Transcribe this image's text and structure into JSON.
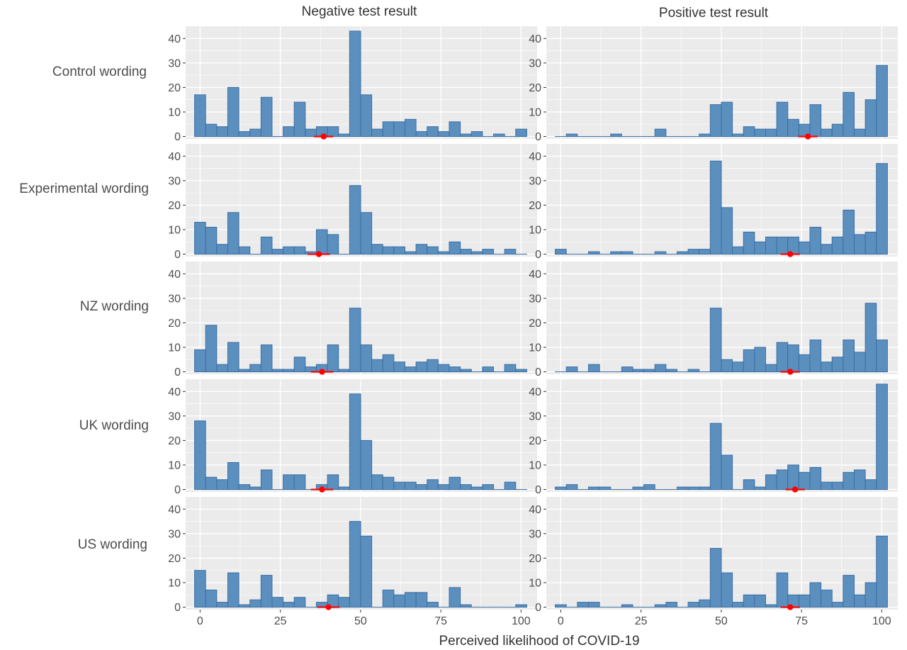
{
  "chart_data": {
    "type": "histogram",
    "xlabel": "Perceived likelihood of COVID-19",
    "ylabel": "",
    "columns": [
      "Negative test result",
      "Positive test result"
    ],
    "rows": [
      "Control wording",
      "Experimental wording",
      "NZ wording",
      "UK wording",
      "US wording"
    ],
    "x_ticks": [
      0,
      25,
      50,
      75,
      100
    ],
    "y_ticks": [
      0,
      10,
      20,
      30,
      40
    ],
    "xlim": [
      -4.5,
      105
    ],
    "ylim": [
      -1,
      45
    ],
    "bin_width": 3.45,
    "bin_centers": [
      0,
      3.45,
      6.9,
      10.35,
      13.8,
      17.25,
      20.7,
      24.15,
      27.6,
      31.05,
      34.5,
      37.95,
      41.4,
      44.85,
      48.3,
      51.75,
      55.2,
      58.65,
      62.1,
      65.55,
      69,
      72.45,
      75.9,
      79.35,
      82.8,
      86.25,
      89.7,
      93.15,
      96.6,
      100.05
    ],
    "bar_fill": "#5b8fbe",
    "bar_stroke": "#3b6fa5",
    "panel_background": "#ebebeb",
    "grid_color": "#ffffff",
    "estimate_color": "#ff0000",
    "panels": [
      {
        "row": "Control wording",
        "column": "Negative test result",
        "counts": [
          17,
          5,
          4,
          20,
          2,
          3,
          16,
          0,
          4,
          14,
          3,
          4,
          4,
          1,
          43,
          17,
          3,
          6,
          6,
          7,
          2,
          4,
          2,
          6,
          1,
          2,
          0,
          1,
          0,
          3
        ],
        "estimate": 38.5,
        "ci": [
          35.5,
          41.5
        ]
      },
      {
        "row": "Control wording",
        "column": "Positive test result",
        "counts": [
          0,
          1,
          0,
          0,
          0,
          1,
          0,
          0,
          0,
          3,
          0,
          0,
          0,
          1,
          13,
          14,
          1,
          4,
          3,
          3,
          14,
          7,
          5,
          13,
          3,
          5,
          18,
          3,
          15,
          29
        ],
        "estimate": 77,
        "ci": [
          74,
          80
        ]
      },
      {
        "row": "Experimental wording",
        "column": "Negative test result",
        "counts": [
          13,
          11,
          4,
          17,
          3,
          0,
          7,
          2,
          3,
          3,
          1,
          10,
          8,
          0,
          28,
          17,
          4,
          3,
          3,
          1,
          4,
          3,
          1,
          5,
          2,
          1,
          2,
          0,
          2,
          0
        ],
        "estimate": 37,
        "ci": [
          33.5,
          40.5
        ]
      },
      {
        "row": "Experimental wording",
        "column": "Positive test result",
        "counts": [
          2,
          0,
          0,
          1,
          0,
          1,
          1,
          0,
          0,
          1,
          0,
          1,
          2,
          2,
          38,
          19,
          3,
          9,
          5,
          7,
          7,
          7,
          5,
          11,
          4,
          7,
          18,
          8,
          9,
          37
        ],
        "estimate": 71.5,
        "ci": [
          68.5,
          74.5
        ]
      },
      {
        "row": "NZ wording",
        "column": "Negative test result",
        "counts": [
          9,
          19,
          3,
          12,
          1,
          3,
          11,
          1,
          1,
          6,
          2,
          3,
          11,
          1,
          26,
          11,
          5,
          7,
          4,
          2,
          4,
          5,
          3,
          2,
          1,
          0,
          2,
          0,
          3,
          1
        ],
        "estimate": 38,
        "ci": [
          34.5,
          41.5
        ]
      },
      {
        "row": "NZ wording",
        "column": "Positive test result",
        "counts": [
          0,
          2,
          0,
          3,
          0,
          0,
          2,
          1,
          1,
          3,
          1,
          0,
          1,
          0,
          26,
          5,
          4,
          9,
          10,
          3,
          12,
          11,
          7,
          13,
          4,
          6,
          13,
          8,
          28,
          13
        ],
        "estimate": 71.5,
        "ci": [
          68.5,
          74.5
        ]
      },
      {
        "row": "UK wording",
        "column": "Negative test result",
        "counts": [
          28,
          5,
          4,
          11,
          2,
          1,
          8,
          0,
          6,
          6,
          0,
          2,
          6,
          1,
          39,
          20,
          6,
          5,
          3,
          3,
          2,
          4,
          2,
          5,
          2,
          1,
          2,
          0,
          3,
          0
        ],
        "estimate": 38,
        "ci": [
          34.5,
          41.5
        ]
      },
      {
        "row": "UK wording",
        "column": "Positive test result",
        "counts": [
          1,
          2,
          0,
          1,
          1,
          0,
          0,
          1,
          2,
          0,
          0,
          1,
          1,
          1,
          27,
          14,
          0,
          4,
          1,
          6,
          8,
          10,
          7,
          9,
          3,
          3,
          7,
          8,
          4,
          43
        ],
        "estimate": 73,
        "ci": [
          70,
          76
        ]
      },
      {
        "row": "US wording",
        "column": "Negative test result",
        "counts": [
          15,
          7,
          2,
          14,
          1,
          3,
          13,
          4,
          2,
          4,
          0,
          2,
          5,
          4,
          35,
          29,
          0,
          7,
          5,
          6,
          6,
          2,
          0,
          8,
          1,
          0,
          0,
          0,
          0,
          1
        ],
        "estimate": 40,
        "ci": [
          36.5,
          43.5
        ]
      },
      {
        "row": "US wording",
        "column": "Positive test result",
        "counts": [
          1,
          0,
          2,
          2,
          0,
          0,
          1,
          0,
          0,
          1,
          2,
          0,
          2,
          3,
          24,
          14,
          2,
          5,
          5,
          1,
          14,
          5,
          5,
          10,
          7,
          2,
          13,
          5,
          10,
          29
        ],
        "estimate": 71.5,
        "ci": [
          68.5,
          74.5
        ]
      }
    ]
  }
}
